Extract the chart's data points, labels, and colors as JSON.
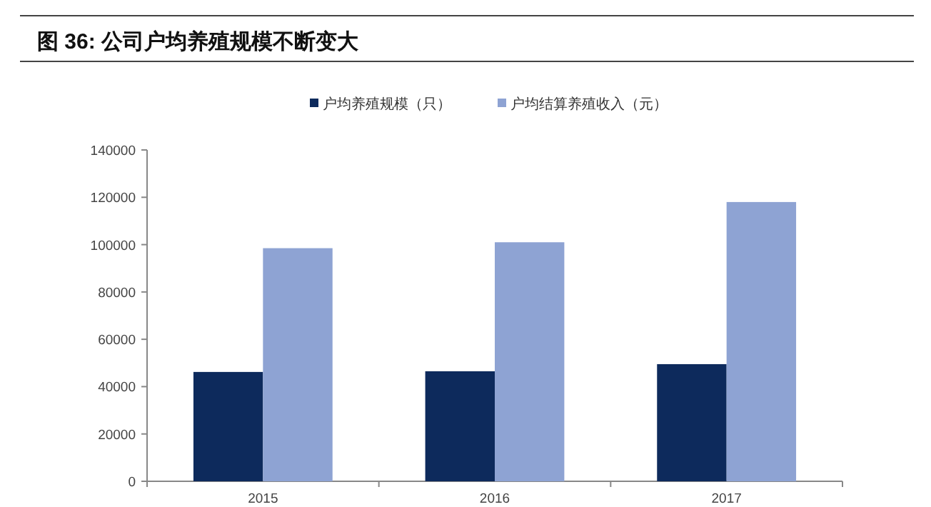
{
  "chart_data": {
    "type": "bar",
    "title": "图 36: 公司户均养殖规模不断变大",
    "categories": [
      "2015",
      "2016",
      "2017"
    ],
    "series": [
      {
        "name": "户均养殖规模（只）",
        "color": "#0d2a5c",
        "values": [
          46200,
          46500,
          49500
        ]
      },
      {
        "name": "户均结算养殖收入（元）",
        "color": "#8ea3d3",
        "values": [
          98500,
          101000,
          118000
        ]
      }
    ],
    "ylim": [
      0,
      140000
    ],
    "yticks": [
      0,
      20000,
      40000,
      60000,
      80000,
      100000,
      120000,
      140000
    ],
    "grid": false,
    "legend": "top"
  }
}
